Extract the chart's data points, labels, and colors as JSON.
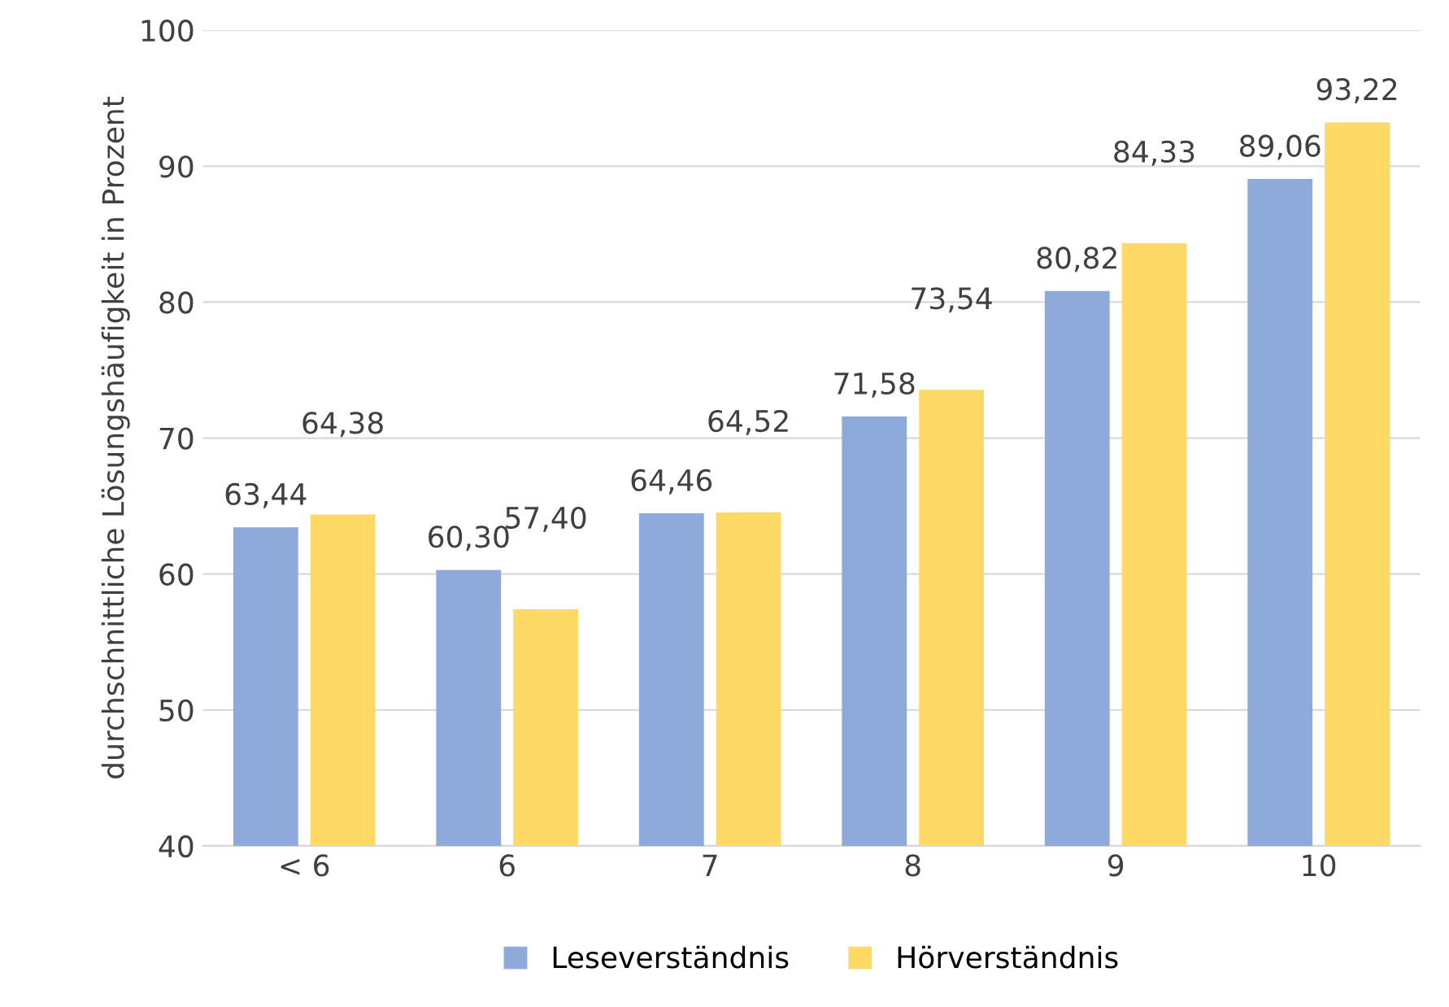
{
  "chart_data": {
    "type": "bar",
    "ylabel": "durchschnittliche Lösungshäufigkeit in Prozent",
    "categories": [
      "< 6",
      "6",
      "7",
      "8",
      "9",
      "10"
    ],
    "series": [
      {
        "name": "Leseverständnis",
        "color": "#8eaadb",
        "values": [
          63.44,
          60.3,
          64.46,
          71.58,
          80.82,
          89.06
        ],
        "value_labels": [
          "63,44",
          "60,30",
          "64,46",
          "71,58",
          "80,82",
          "89,06"
        ]
      },
      {
        "name": "Hörverständnis",
        "color": "#ffd966",
        "values": [
          64.38,
          57.4,
          64.52,
          73.54,
          84.33,
          93.22
        ],
        "value_labels": [
          "64,38",
          "57,40",
          "64,52",
          "73,54",
          "84,33",
          "93,22"
        ]
      }
    ],
    "ylim": [
      40,
      100
    ],
    "yticks": [
      40,
      50,
      60,
      70,
      80,
      90,
      100
    ],
    "grid": "y",
    "legend": "bottom"
  }
}
